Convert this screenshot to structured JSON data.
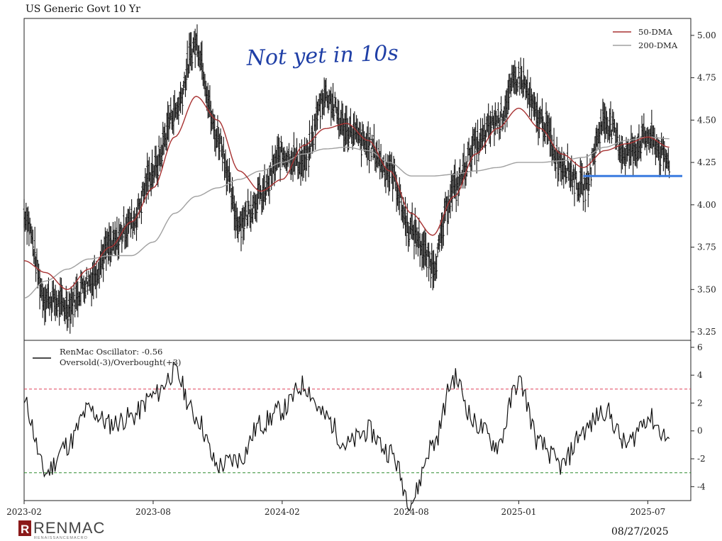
{
  "header": {
    "title": "US Generic Govt 10 Yr"
  },
  "footer": {
    "date": "08/27/2025",
    "logo_text": "RENMAC",
    "logo_sub": "RENAISSANCEMACRO"
  },
  "annotation": {
    "text": "Not yet in 10s",
    "line_color": "#3a7be0",
    "level": 4.17
  },
  "colors": {
    "price": "#111111",
    "dma50": "#a83232",
    "dma200": "#a0a0a0",
    "overbought": "#e0405a",
    "oversold": "#2e8b2e",
    "oscillator": "#111111"
  },
  "chart_data": [
    {
      "type": "line",
      "title": "US Generic Govt 10 Yr",
      "ylim": [
        3.2,
        5.1
      ],
      "y_ticks": [
        "3.25",
        "3.50",
        "3.75",
        "4.00",
        "4.25",
        "4.50",
        "4.75",
        "5.00"
      ],
      "legend": {
        "placement": "top-right"
      },
      "series": [
        {
          "name": "",
          "role": "price",
          "x": [
            "2023-02",
            "2023-03",
            "2023-04",
            "2023-05",
            "2023-06",
            "2023-07",
            "2023-08",
            "2023-09",
            "2023-10",
            "2023-11",
            "2023-12",
            "2024-01",
            "2024-02",
            "2024-03",
            "2024-04",
            "2024-05",
            "2024-06",
            "2024-07",
            "2024-08",
            "2024-09",
            "2024-10",
            "2024-11",
            "2024-12",
            "2025-01",
            "2025-02",
            "2025-03",
            "2025-04",
            "2025-05",
            "2025-06",
            "2025-07",
            "2025-08"
          ],
          "values": [
            3.95,
            3.45,
            3.4,
            3.55,
            3.75,
            3.9,
            4.2,
            4.55,
            4.95,
            4.4,
            3.9,
            4.05,
            4.3,
            4.25,
            4.65,
            4.45,
            4.35,
            4.2,
            3.85,
            3.65,
            4.1,
            4.35,
            4.5,
            4.75,
            4.5,
            4.25,
            4.1,
            4.5,
            4.3,
            4.4,
            4.25
          ]
        },
        {
          "name": "50-DMA",
          "x": [
            "2023-02",
            "2023-03",
            "2023-04",
            "2023-05",
            "2023-06",
            "2023-07",
            "2023-08",
            "2023-09",
            "2023-10",
            "2023-11",
            "2023-12",
            "2024-01",
            "2024-02",
            "2024-03",
            "2024-04",
            "2024-05",
            "2024-06",
            "2024-07",
            "2024-08",
            "2024-09",
            "2024-10",
            "2024-11",
            "2024-12",
            "2025-01",
            "2025-02",
            "2025-03",
            "2025-04",
            "2025-05",
            "2025-06",
            "2025-07",
            "2025-08"
          ],
          "values": [
            3.67,
            3.6,
            3.5,
            3.62,
            3.75,
            3.9,
            4.1,
            4.4,
            4.64,
            4.5,
            4.2,
            4.08,
            4.15,
            4.35,
            4.45,
            4.48,
            4.38,
            4.2,
            3.95,
            3.82,
            4.05,
            4.3,
            4.45,
            4.57,
            4.45,
            4.3,
            4.22,
            4.32,
            4.36,
            4.4,
            4.34
          ]
        },
        {
          "name": "200-DMA",
          "x": [
            "2023-02",
            "2023-03",
            "2023-04",
            "2023-05",
            "2023-06",
            "2023-07",
            "2023-08",
            "2023-09",
            "2023-10",
            "2023-11",
            "2023-12",
            "2024-01",
            "2024-02",
            "2024-03",
            "2024-04",
            "2024-05",
            "2024-06",
            "2024-07",
            "2024-08",
            "2024-09",
            "2024-10",
            "2024-11",
            "2024-12",
            "2025-01",
            "2025-02",
            "2025-03",
            "2025-04",
            "2025-05",
            "2025-06",
            "2025-07",
            "2025-08"
          ],
          "values": [
            3.45,
            3.55,
            3.62,
            3.68,
            3.7,
            3.7,
            3.78,
            3.95,
            4.05,
            4.1,
            4.15,
            4.2,
            4.25,
            4.3,
            4.33,
            4.34,
            4.32,
            4.25,
            4.17,
            4.17,
            4.18,
            4.2,
            4.22,
            4.25,
            4.25,
            4.26,
            4.28,
            4.34,
            4.38,
            4.4,
            4.39
          ]
        }
      ]
    },
    {
      "type": "line",
      "ylim": [
        -5,
        6.5
      ],
      "y_ticks": [
        "-4",
        "-2",
        "0",
        "2",
        "4",
        "6"
      ],
      "x_ticks": [
        "2023-02",
        "2023-08",
        "2024-02",
        "2024-08",
        "2025-01",
        "2025-07"
      ],
      "legend": {
        "placement": "top-left"
      },
      "reference_lines": [
        {
          "label": "Overbought(+3)",
          "value": 3
        },
        {
          "label": "Oversold(-3)",
          "value": -3
        }
      ],
      "series": [
        {
          "name": "RenMac Oscillator: -0.56",
          "legend_line2": "Oversold(-3)/Overbought(+3)",
          "x": [
            "2023-02",
            "2023-03",
            "2023-04",
            "2023-05",
            "2023-06",
            "2023-07",
            "2023-08",
            "2023-09",
            "2023-10",
            "2023-11",
            "2023-12",
            "2024-01",
            "2024-02",
            "2024-03",
            "2024-04",
            "2024-05",
            "2024-06",
            "2024-07",
            "2024-08",
            "2024-09",
            "2024-10",
            "2024-11",
            "2024-12",
            "2025-01",
            "2025-02",
            "2025-03",
            "2025-04",
            "2025-05",
            "2025-06",
            "2025-07",
            "2025-08"
          ],
          "values": [
            2.0,
            -3.0,
            -1.0,
            1.5,
            0.5,
            1.0,
            2.5,
            4.2,
            1.0,
            -2.5,
            -2.0,
            0.5,
            1.5,
            3.3,
            1.0,
            -1.0,
            0.0,
            -1.5,
            -5.0,
            -1.0,
            3.8,
            0.5,
            -1.0,
            3.5,
            -1.0,
            -2.5,
            0.0,
            1.5,
            -1.0,
            1.0,
            -0.56
          ]
        }
      ]
    }
  ]
}
